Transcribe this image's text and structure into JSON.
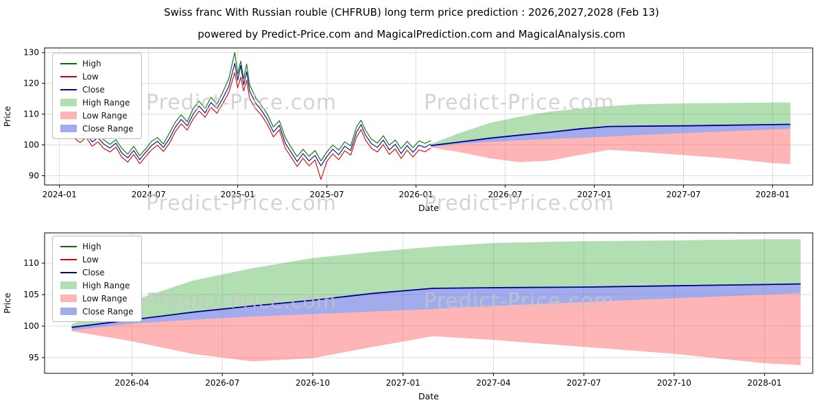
{
  "page": {
    "title": "Swiss franc With Russian rouble (CHFRUB) long term price prediction : 2026,2027,2028 (Feb 13)",
    "subtitle": "powered by Predict-Price.com and MagicalPrediction.com and MagicalAnalysis.com",
    "watermark": "Predict-Price.com"
  },
  "legend": {
    "items": [
      "High",
      "Low",
      "Close",
      "High Range",
      "Low Range",
      "Close Range"
    ]
  },
  "colors": {
    "high": "#007000",
    "low": "#d40000",
    "close": "#00008b",
    "high_range": "rgba(0,150,0,0.30)",
    "low_range": "rgba(255,70,70,0.40)",
    "close_range": "rgba(70,90,220,0.50)",
    "grid": "#d9d9d9",
    "frame": "#000000",
    "watermark": "#c6c6c6"
  },
  "chart_data": [
    {
      "name": "history-and-forecast",
      "type": "line",
      "title": "",
      "xlabel": "Date",
      "ylabel": "Price",
      "x_unit": "months since 2024-01",
      "xlim": [
        -1,
        50.7
      ],
      "ylim": [
        87,
        131.5
      ],
      "grid": true,
      "legend_position": "upper left",
      "xticks": {
        "values": [
          0,
          6,
          12,
          18,
          24,
          30,
          36,
          42,
          48
        ],
        "labels": [
          "2024-01",
          "2024-07",
          "2025-01",
          "2025-07",
          "2026-01",
          "2026-07",
          "2027-01",
          "2027-07",
          "2028-01"
        ]
      },
      "yticks": [
        90,
        100,
        110,
        120,
        130
      ],
      "history": {
        "x": [
          1.0,
          1.4,
          1.8,
          2.2,
          2.6,
          3.0,
          3.4,
          3.8,
          4.2,
          4.6,
          5.0,
          5.4,
          5.8,
          6.2,
          6.6,
          7.0,
          7.4,
          7.8,
          8.2,
          8.6,
          9.0,
          9.4,
          9.8,
          10.2,
          10.6,
          11.0,
          11.4,
          11.8,
          12.0,
          12.2,
          12.4,
          12.6,
          12.8,
          13.2,
          13.6,
          14.0,
          14.4,
          14.8,
          15.2,
          15.6,
          16.0,
          16.4,
          16.8,
          17.2,
          17.6,
          18.0,
          18.4,
          18.8,
          19.2,
          19.6,
          20.0,
          20.3,
          20.6,
          21.0,
          21.4,
          21.8,
          22.2,
          22.6,
          23.0,
          23.4,
          23.8,
          24.2,
          24.6,
          25.0
        ],
        "high": [
          104.8,
          103.3,
          105.0,
          102.5,
          103.4,
          101.6,
          100.2,
          101.7,
          98.9,
          97.0,
          99.6,
          96.5,
          98.7,
          101.2,
          102.4,
          100.3,
          103.8,
          107.4,
          109.8,
          107.5,
          111.8,
          114.2,
          111.8,
          115.5,
          113.2,
          117.2,
          121.5,
          130.0,
          123.0,
          127.2,
          121.5,
          126.3,
          119.5,
          115.4,
          112.8,
          109.9,
          105.8,
          107.9,
          102.4,
          99.2,
          96.2,
          98.6,
          96.3,
          98.2,
          94.8,
          97.7,
          100.0,
          98.3,
          101.0,
          99.7,
          105.9,
          108.0,
          104.8,
          101.9,
          100.6,
          103.0,
          99.9,
          101.6,
          98.8,
          101.2,
          99.1,
          101.3,
          100.5,
          101.4
        ],
        "low": [
          102.1,
          100.8,
          102.4,
          99.6,
          101.0,
          98.8,
          97.7,
          99.3,
          96.0,
          94.4,
          96.9,
          93.9,
          96.2,
          98.4,
          99.9,
          97.9,
          100.5,
          104.3,
          106.9,
          104.8,
          108.4,
          111.0,
          109.0,
          112.2,
          110.3,
          113.5,
          117.0,
          123.5,
          118.5,
          122.0,
          117.5,
          121.0,
          115.0,
          111.8,
          109.6,
          106.6,
          102.6,
          104.9,
          98.9,
          96.0,
          93.0,
          95.7,
          93.2,
          95.1,
          88.8,
          94.6,
          97.1,
          95.2,
          98.1,
          96.7,
          102.5,
          105.0,
          101.6,
          98.9,
          97.7,
          100.1,
          96.9,
          98.7,
          95.6,
          98.3,
          96.1,
          98.4,
          97.8,
          99.0
        ],
        "close": [
          103.5,
          102.2,
          103.8,
          101.0,
          102.3,
          100.2,
          99.0,
          100.6,
          97.4,
          95.8,
          98.2,
          95.2,
          97.6,
          99.8,
          101.2,
          99.2,
          102.0,
          105.8,
          108.3,
          106.2,
          110.0,
          112.6,
          110.4,
          113.8,
          111.8,
          115.2,
          119.0,
          126.5,
          121.0,
          125.8,
          119.5,
          123.8,
          117.5,
          113.6,
          111.2,
          108.2,
          104.2,
          106.4,
          100.6,
          97.6,
          94.6,
          97.2,
          94.8,
          96.6,
          93.2,
          96.2,
          98.6,
          96.8,
          99.6,
          98.2,
          104.2,
          106.6,
          103.2,
          100.4,
          99.2,
          101.6,
          98.4,
          100.2,
          97.2,
          99.8,
          97.6,
          99.9,
          99.2,
          100.3
        ]
      },
      "forecast": {
        "x": [
          25.0,
          27,
          29,
          31,
          33,
          35,
          37,
          39,
          42,
          45,
          48,
          49.2
        ],
        "high": [
          100.3,
          104.0,
          107.2,
          109.2,
          110.8,
          111.8,
          112.6,
          113.2,
          113.5,
          113.6,
          113.8,
          113.8
        ],
        "close": [
          99.8,
          101.0,
          102.2,
          103.2,
          104.1,
          105.2,
          106.0,
          106.1,
          106.2,
          106.4,
          106.6,
          106.7
        ],
        "close_band_low": [
          99.3,
          100.4,
          101.0,
          101.5,
          101.9,
          102.3,
          102.7,
          103.2,
          103.8,
          104.4,
          105.0,
          105.2
        ],
        "low": [
          99.2,
          97.6,
          95.6,
          94.4,
          94.9,
          96.7,
          98.4,
          97.8,
          96.7,
          95.6,
          94.1,
          93.8
        ]
      }
    },
    {
      "name": "forecast-detail",
      "type": "line",
      "title": "",
      "xlabel": "Date",
      "ylabel": "Price",
      "x_unit": "months since 2024-01",
      "xlim": [
        24.1,
        49.6
      ],
      "ylim": [
        92.5,
        114.8
      ],
      "grid": true,
      "legend_position": "upper left",
      "xticks": {
        "values": [
          27,
          30,
          33,
          36,
          39,
          42,
          45,
          48
        ],
        "labels": [
          "2026-04",
          "2026-07",
          "2026-10",
          "2027-01",
          "2027-04",
          "2027-07",
          "2027-10",
          "2028-01"
        ]
      },
      "yticks": [
        95,
        100,
        105,
        110
      ],
      "forecast": {
        "x": [
          25.0,
          27,
          29,
          31,
          33,
          35,
          37,
          39,
          42,
          45,
          48,
          49.2
        ],
        "high": [
          100.3,
          104.0,
          107.2,
          109.2,
          110.8,
          111.8,
          112.6,
          113.2,
          113.5,
          113.6,
          113.8,
          113.8
        ],
        "close": [
          99.8,
          101.0,
          102.2,
          103.2,
          104.1,
          105.2,
          106.0,
          106.1,
          106.2,
          106.4,
          106.6,
          106.7
        ],
        "close_band_low": [
          99.3,
          100.4,
          101.0,
          101.5,
          101.9,
          102.3,
          102.7,
          103.2,
          103.8,
          104.4,
          105.0,
          105.2
        ],
        "low": [
          99.2,
          97.6,
          95.6,
          94.4,
          94.9,
          96.7,
          98.4,
          97.8,
          96.7,
          95.6,
          94.1,
          93.8
        ]
      }
    }
  ]
}
